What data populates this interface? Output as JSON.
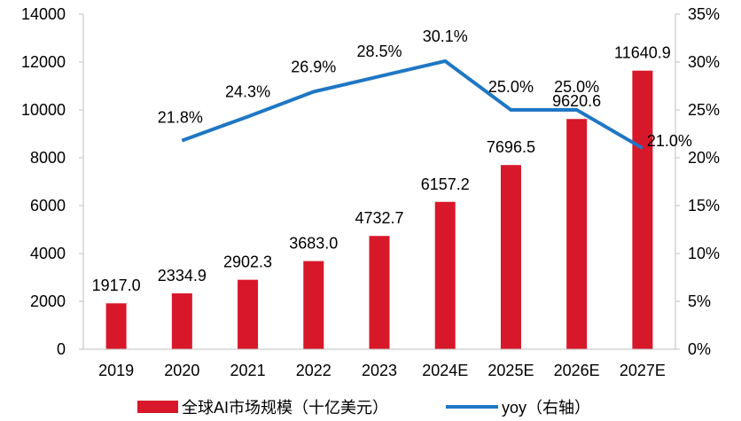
{
  "chart_data": {
    "type": "bar+line",
    "categories": [
      "2019",
      "2020",
      "2021",
      "2022",
      "2023",
      "2024E",
      "2025E",
      "2026E",
      "2027E"
    ],
    "series": [
      {
        "name": "全球AI市场规模（十亿美元）",
        "type": "bar",
        "axis": "left",
        "color": "#d7182a",
        "values": [
          1917.0,
          2334.9,
          2902.3,
          3683.0,
          4732.7,
          6157.2,
          7696.5,
          9620.6,
          11640.9
        ],
        "labels": [
          "1917.0",
          "2334.9",
          "2902.3",
          "3683.0",
          "4732.7",
          "6157.2",
          "7696.5",
          "9620.6",
          "11640.9"
        ]
      },
      {
        "name": "yoy（右轴）",
        "type": "line",
        "axis": "right",
        "color": "#1f77c4",
        "values": [
          null,
          21.8,
          24.3,
          26.9,
          28.5,
          30.1,
          25.0,
          25.0,
          21.0
        ],
        "labels": [
          "",
          "21.8%",
          "24.3%",
          "26.9%",
          "28.5%",
          "30.1%",
          "25.0%",
          "25.0%",
          "21.0%"
        ]
      }
    ],
    "y_left": {
      "min": 0,
      "max": 14000,
      "ticks": [
        "0",
        "2000",
        "4000",
        "6000",
        "8000",
        "10000",
        "12000",
        "14000"
      ]
    },
    "y_right": {
      "min": 0,
      "max": 35,
      "ticks": [
        "0%",
        "5%",
        "10%",
        "15%",
        "20%",
        "25%",
        "30%",
        "35%"
      ]
    },
    "grid": false,
    "legend_position": "bottom"
  }
}
